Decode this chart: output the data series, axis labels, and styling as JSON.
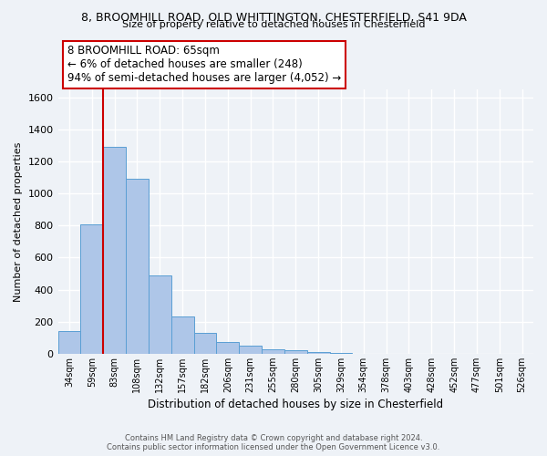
{
  "title1": "8, BROOMHILL ROAD, OLD WHITTINGTON, CHESTERFIELD, S41 9DA",
  "title2": "Size of property relative to detached houses in Chesterfield",
  "xlabel": "Distribution of detached houses by size in Chesterfield",
  "ylabel": "Number of detached properties",
  "footnote1": "Contains HM Land Registry data © Crown copyright and database right 2024.",
  "footnote2": "Contains public sector information licensed under the Open Government Licence v3.0.",
  "bar_labels": [
    "34sqm",
    "59sqm",
    "83sqm",
    "108sqm",
    "132sqm",
    "157sqm",
    "182sqm",
    "206sqm",
    "231sqm",
    "255sqm",
    "280sqm",
    "305sqm",
    "329sqm",
    "354sqm",
    "378sqm",
    "403sqm",
    "428sqm",
    "452sqm",
    "477sqm",
    "501sqm",
    "526sqm"
  ],
  "bar_values": [
    140,
    810,
    1295,
    1095,
    490,
    235,
    130,
    75,
    50,
    28,
    20,
    8,
    2,
    1,
    1,
    1,
    0,
    0,
    0,
    0,
    0
  ],
  "bar_color": "#aec6e8",
  "bar_edge_color": "#5a9fd4",
  "ylim": [
    0,
    1650
  ],
  "yticks": [
    0,
    200,
    400,
    600,
    800,
    1000,
    1200,
    1400,
    1600
  ],
  "vline_x": 1.5,
  "vline_color": "#cc0000",
  "annotation_title": "8 BROOMHILL ROAD: 65sqm",
  "annotation_line1": "← 6% of detached houses are smaller (248)",
  "annotation_line2": "94% of semi-detached houses are larger (4,052) →",
  "box_color": "#ffffff",
  "box_edge_color": "#cc0000",
  "bg_color": "#eef2f7"
}
